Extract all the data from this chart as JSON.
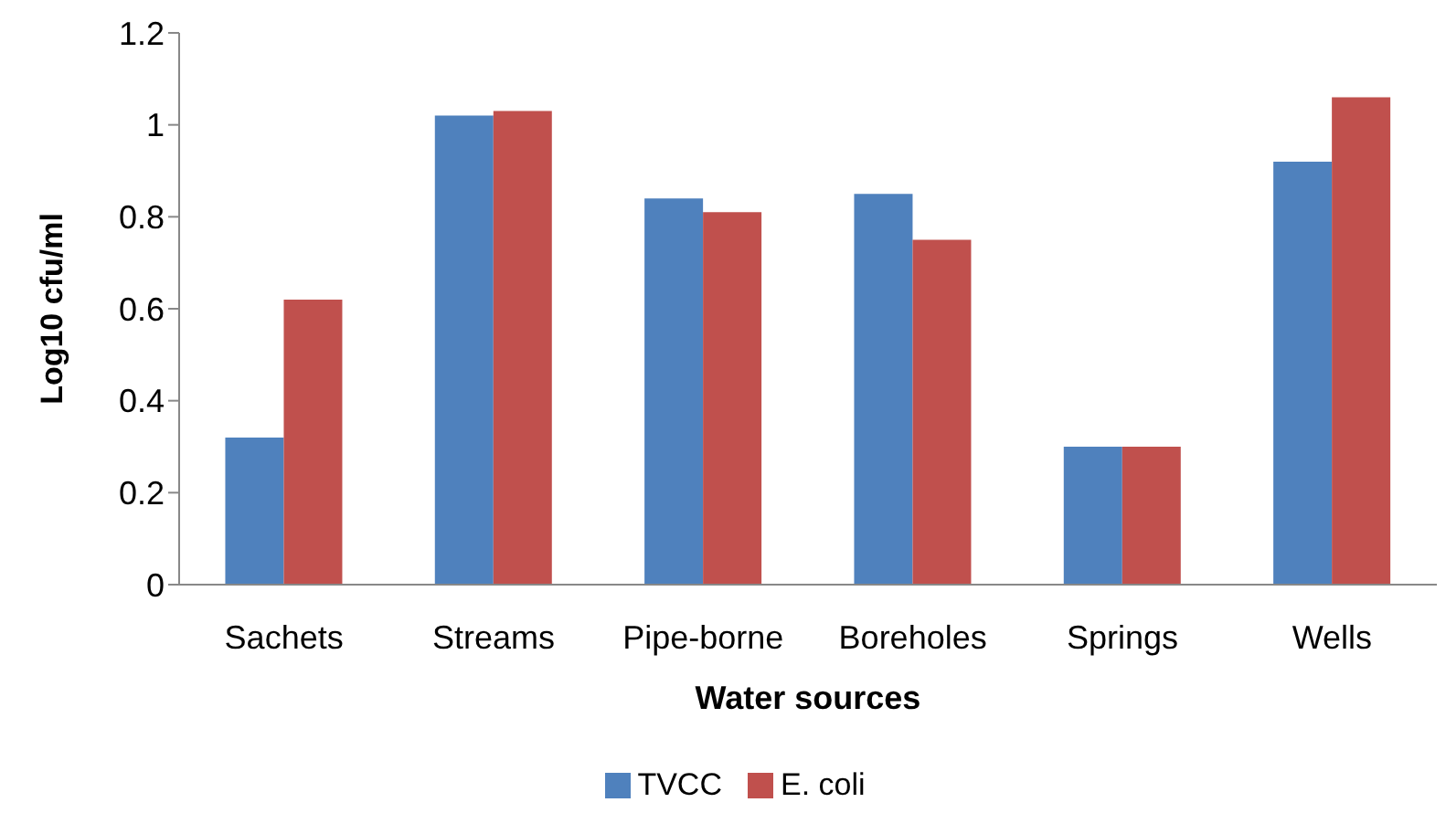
{
  "chart_data": {
    "type": "bar",
    "xlabel": "Water  sources",
    "ylabel": "Log10 cfu/ml",
    "categories": [
      "Sachets",
      "Streams",
      "Pipe-borne",
      "Boreholes",
      "Springs",
      "Wells"
    ],
    "series": [
      {
        "name": "TVCC",
        "color": "#4f81bd",
        "values": [
          0.32,
          1.02,
          0.84,
          0.85,
          0.3,
          0.92
        ]
      },
      {
        "name": "E. coli",
        "color": "#c0504d",
        "values": [
          0.62,
          1.03,
          0.81,
          0.75,
          0.3,
          1.06
        ]
      }
    ],
    "ylim": [
      0,
      1.2
    ],
    "yticks": [
      0,
      0.2,
      0.4,
      0.6,
      0.8,
      1,
      1.2
    ],
    "grid": false,
    "legend": "bottom"
  }
}
